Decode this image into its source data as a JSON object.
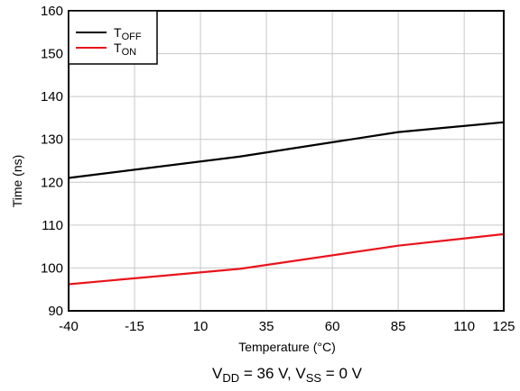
{
  "chart_data": {
    "type": "line",
    "x_ticks": [
      "-40",
      "-15",
      "10",
      "35",
      "60",
      "85",
      "110",
      "125"
    ],
    "y_ticks": [
      "90",
      "100",
      "110",
      "120",
      "130",
      "140",
      "150",
      "160"
    ],
    "x": [
      -40,
      25,
      85,
      125
    ],
    "xlim": [
      -40,
      125
    ],
    "ylim": [
      90,
      160
    ],
    "grid": true,
    "legend_position": "top-left",
    "ylabel": "Time (ns)",
    "xlabel": "Temperature (°C)",
    "series": [
      {
        "name": "TOFF",
        "name_base": "T",
        "name_sub": "OFF",
        "color": "#000000",
        "values": [
          121,
          126,
          131.7,
          134
        ]
      },
      {
        "name": "TON",
        "name_base": "T",
        "name_sub": "ON",
        "color": "#e8141b",
        "values": [
          96.2,
          99.8,
          105.2,
          107.9
        ]
      }
    ],
    "caption": {
      "part1_base": "V",
      "part1_sub": "DD",
      "part1_rest": " = 36 V, ",
      "part2_base": "V",
      "part2_sub": "SS",
      "part2_rest": " = 0 V"
    }
  }
}
